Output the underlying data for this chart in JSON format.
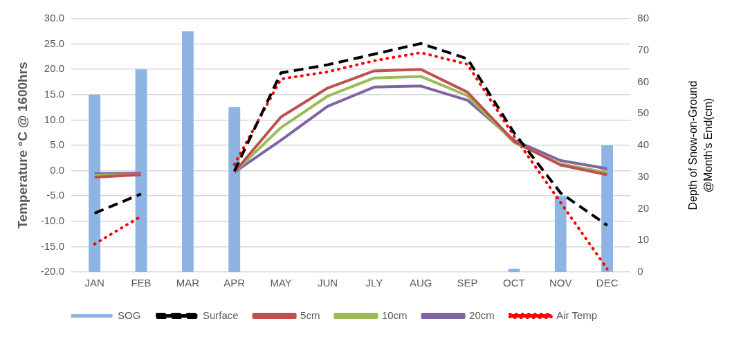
{
  "chart_data": {
    "type": "bar",
    "categories": [
      "JAN",
      "FEB",
      "MAR",
      "APR",
      "MAY",
      "JUN",
      "JLY",
      "AUG",
      "SEP",
      "OCT",
      "NOV",
      "DEC"
    ],
    "ylabel": "Temperature °C @ 1600hrs",
    "y2label": "Depth of Snow-on-Ground @Month's End(cm)",
    "ylim": [
      -20,
      30
    ],
    "yticks": [
      {
        "value": -20,
        "label": "-20.0"
      },
      {
        "value": -15,
        "label": "-15.0"
      },
      {
        "value": -10,
        "label": "-10.0"
      },
      {
        "value": -5,
        "label": "-5.0"
      },
      {
        "value": 0,
        "label": "0.0"
      },
      {
        "value": 5,
        "label": "5.0"
      },
      {
        "value": 10,
        "label": "10.0"
      },
      {
        "value": 15,
        "label": "15.0"
      },
      {
        "value": 20,
        "label": "20.0"
      },
      {
        "value": 25,
        "label": "25.0"
      },
      {
        "value": 30,
        "label": "30.0"
      }
    ],
    "y2lim": [
      0,
      80
    ],
    "y2ticks": [
      0,
      10,
      20,
      30,
      40,
      50,
      60,
      70,
      80
    ],
    "grid": "y",
    "legend": "bottom",
    "marker": "none",
    "series": [
      {
        "name": "SOG",
        "axis": "y2",
        "color": "#8eb4e3",
        "values": [
          56,
          64,
          76,
          52,
          null,
          null,
          null,
          null,
          null,
          1,
          24,
          40
        ]
      },
      {
        "name": "Surface",
        "type": "line",
        "line_style": "dashed",
        "color": "#000000",
        "values": [
          -8.4,
          -4.6,
          null,
          -0.1,
          19.3,
          20.9,
          23.0,
          25.1,
          22.1,
          7.5,
          -4.4,
          -10.8
        ]
      },
      {
        "name": "5cm",
        "type": "line",
        "line_style": "solid",
        "color": "#c0504d",
        "values": [
          -1.3,
          -0.8,
          null,
          -0.3,
          10.6,
          16.3,
          19.7,
          20.0,
          15.5,
          5.8,
          1.1,
          -0.8
        ]
      },
      {
        "name": "10cm",
        "type": "line",
        "line_style": "solid",
        "color": "#9bbb59",
        "values": [
          -0.9,
          -0.8,
          null,
          -0.3,
          8.5,
          14.7,
          18.3,
          18.6,
          14.8,
          5.6,
          1.3,
          -0.4
        ]
      },
      {
        "name": "20cm",
        "type": "line",
        "line_style": "solid",
        "color": "#8064a2",
        "values": [
          -0.6,
          -0.5,
          null,
          -0.3,
          6.0,
          12.7,
          16.5,
          16.7,
          13.9,
          6.0,
          2.0,
          0.4
        ]
      },
      {
        "name": "Air Temp",
        "type": "line",
        "line_style": "dotted",
        "color": "#ff0000",
        "values": [
          -14.5,
          -9.0,
          null,
          1.2,
          18.1,
          19.5,
          21.7,
          23.3,
          21.0,
          6.8,
          -6.3,
          -19.4
        ]
      }
    ]
  }
}
